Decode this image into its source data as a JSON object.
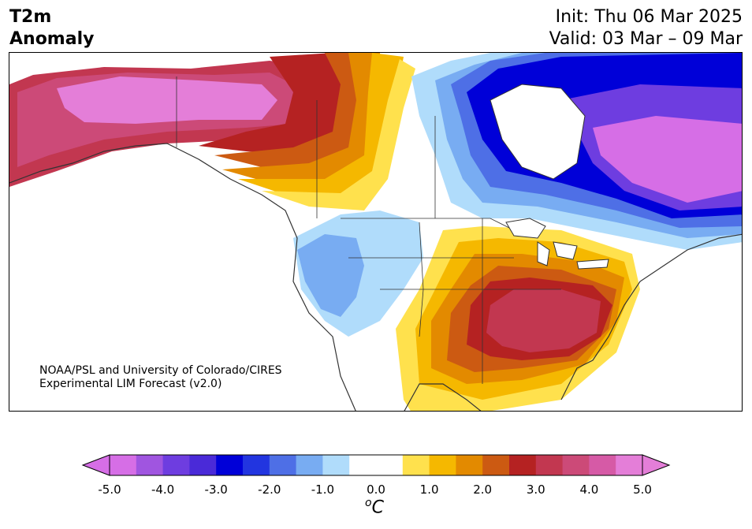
{
  "header": {
    "variable_line1": "T2m",
    "variable_line2": "Anomaly",
    "init": "Init: Thu 06 Mar 2025",
    "valid": "Valid: 03 Mar – 09 Mar"
  },
  "credit": {
    "line1": "NOAA/PSL and University of Colorado/CIRES",
    "line2": "Experimental LIM Forecast (v2.0)"
  },
  "colorbar": {
    "ticks": [
      "-5.0",
      "-4.0",
      "-3.0",
      "-2.0",
      "-1.0",
      "0.0",
      "1.0",
      "2.0",
      "3.0",
      "4.0",
      "5.0"
    ],
    "unit_base": "C",
    "unit_sup": "o",
    "colors": [
      "#d66ee6",
      "#a055e0",
      "#6e3de0",
      "#4a2ad8",
      "#0000d8",
      "#2235e0",
      "#4e6fe6",
      "#78acf2",
      "#b0dcfb",
      "#ffffff",
      "#ffffff",
      "#ffe14d",
      "#f5b800",
      "#e38a00",
      "#cc5a12",
      "#b52222",
      "#c23750",
      "#cc4a78",
      "#d65aa6",
      "#e47ed8"
    ]
  },
  "map": {
    "regions": {
      "alaska_yukon": "strong warm anomaly (4 to 5 C)",
      "central_canada": "warm anomaly (1 to 3 C)",
      "eastern_canada_hudson": "strong cold anomaly (-2 to -5 C)",
      "labrador_quebec": "cold anomaly (-4 to -5 C)",
      "western_us": "cold anomaly (-0.5 to -1.5 C)",
      "southeast_us": "strong warm anomaly (3 to 4 C)"
    }
  }
}
